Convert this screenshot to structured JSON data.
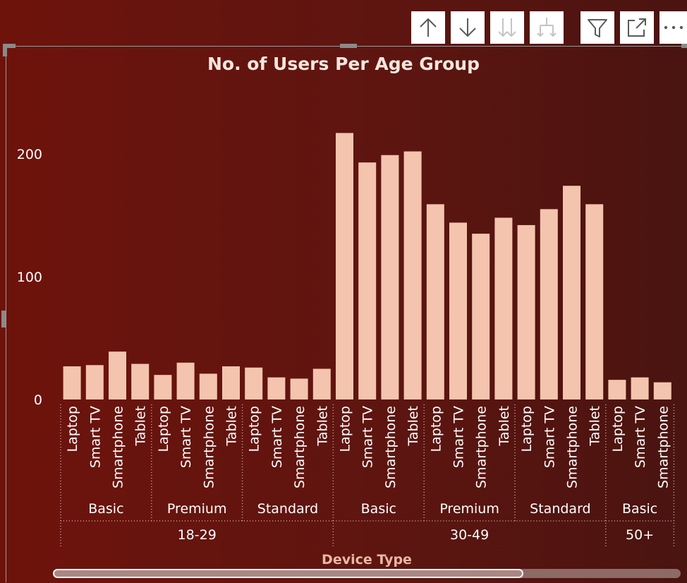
{
  "toolbar": {
    "buttons": [
      {
        "name": "drill-up-arrow-icon",
        "enabled": true
      },
      {
        "name": "drill-down-arrow-icon",
        "enabled": true
      },
      {
        "name": "expand-next-level-icon",
        "enabled": false
      },
      {
        "name": "expand-hierarchy-icon",
        "enabled": false
      },
      {
        "name": "filter-icon",
        "enabled": true
      },
      {
        "name": "focus-mode-icon",
        "enabled": true
      },
      {
        "name": "more-options-icon",
        "enabled": true
      }
    ]
  },
  "colors": {
    "bar": "#f4c4ae",
    "text": "#ffffff",
    "title": "#f4e6de",
    "axis_title": "#e9b8a4",
    "separator": "#c9a79c"
  },
  "chart_data": {
    "type": "bar",
    "title": "No. of Users Per Age Group",
    "xlabel": "Device Type",
    "ylabel": "",
    "ylim": [
      0,
      250
    ],
    "yticks": [
      "0",
      "100",
      "200"
    ],
    "grid": false,
    "groups": [
      {
        "label": "18-29",
        "subgroups": [
          {
            "label": "Basic",
            "categories": [
              "Laptop",
              "Smart TV",
              "Smartphone",
              "Tablet"
            ],
            "values": [
              27,
              28,
              39,
              29
            ]
          },
          {
            "label": "Premium",
            "categories": [
              "Laptop",
              "Smart TV",
              "Smartphone",
              "Tablet"
            ],
            "values": [
              20,
              30,
              21,
              27
            ]
          },
          {
            "label": "Standard",
            "categories": [
              "Laptop",
              "Smart TV",
              "Smartphone",
              "Tablet"
            ],
            "values": [
              26,
              18,
              17,
              25
            ]
          }
        ]
      },
      {
        "label": "30-49",
        "subgroups": [
          {
            "label": "Basic",
            "categories": [
              "Laptop",
              "Smart TV",
              "Smartphone",
              "Tablet"
            ],
            "values": [
              217,
              193,
              199,
              202
            ]
          },
          {
            "label": "Premium",
            "categories": [
              "Laptop",
              "Smart TV",
              "Smartphone",
              "Tablet"
            ],
            "values": [
              159,
              144,
              135,
              148
            ]
          },
          {
            "label": "Standard",
            "categories": [
              "Laptop",
              "Smart TV",
              "Smartphone",
              "Tablet"
            ],
            "values": [
              142,
              155,
              174,
              159
            ]
          }
        ]
      },
      {
        "label": "50+",
        "subgroups": [
          {
            "label": "Basic",
            "categories": [
              "Laptop",
              "Smart TV",
              "Smartphone"
            ],
            "values": [
              16,
              18,
              14
            ]
          }
        ]
      }
    ]
  }
}
